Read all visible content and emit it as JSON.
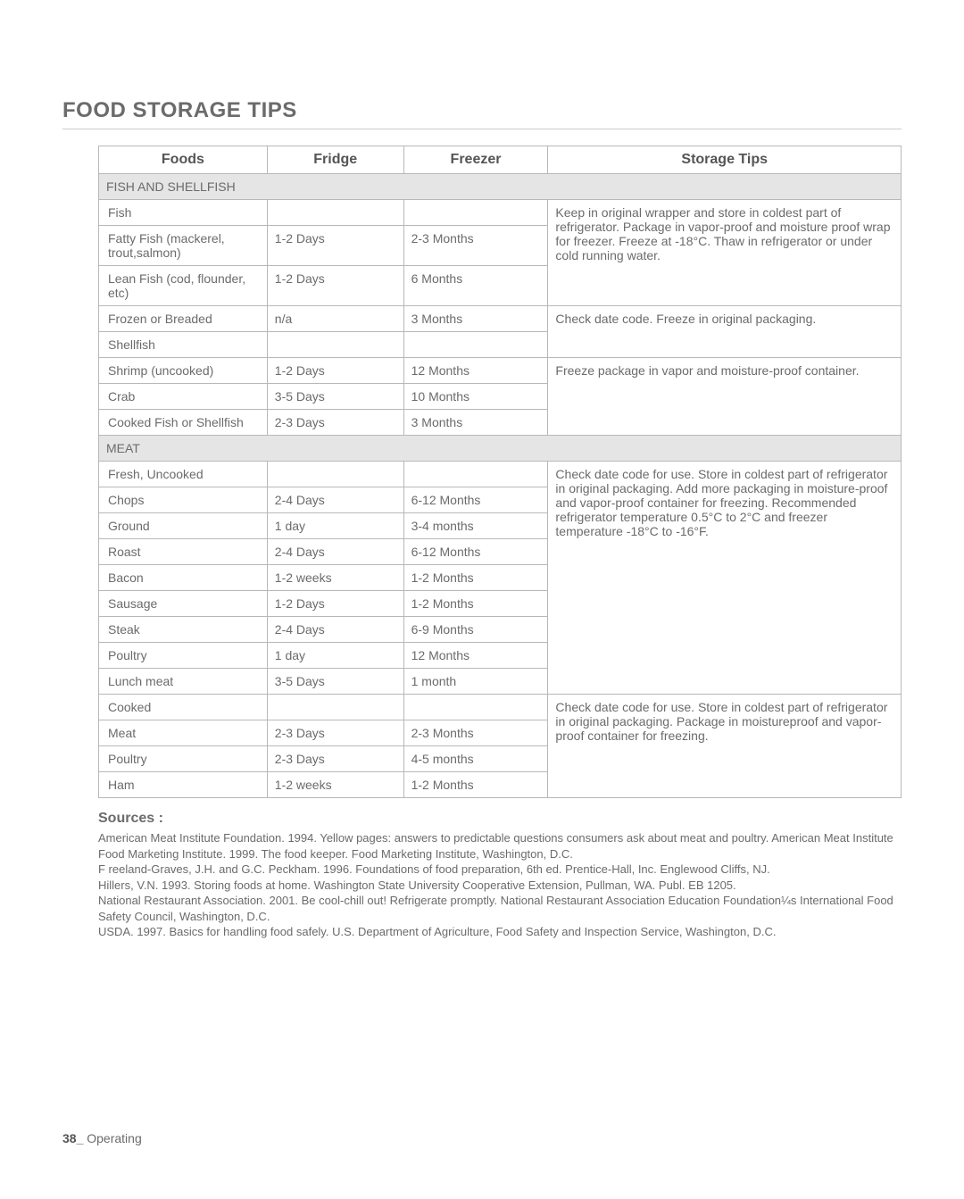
{
  "title": "FOOD STORAGE TIPS",
  "headers": {
    "foods": "Foods",
    "fridge": "Fridge",
    "freezer": "Freezer",
    "tips": "Storage Tips"
  },
  "sections": {
    "fish": "FISH AND SHELLFISH",
    "meat": "MEAT"
  },
  "rows": {
    "fish_sub": "Fish",
    "fatty": {
      "food": "Fatty Fish (mackerel, trout,salmon)",
      "fridge": "1-2 Days",
      "freezer": "2-3 Months"
    },
    "lean": {
      "food": "Lean Fish (cod, flounder, etc)",
      "fridge": "1-2 Days",
      "freezer": "6 Months"
    },
    "tip_fish": "Keep in original wrapper and store in coldest part of refrigerator. Package in vapor-proof and moisture proof wrap for freezer. Freeze at -18°C. Thaw in refrigerator or under cold running water.",
    "frozen": {
      "food": "Frozen or Breaded",
      "fridge": "n/a",
      "freezer": "3 Months"
    },
    "shellfish_sub": "Shellfish",
    "tip_frozen": "Check date code. Freeze in original packaging.",
    "shrimp": {
      "food": "Shrimp (uncooked)",
      "fridge": "1-2 Days",
      "freezer": "12 Months"
    },
    "crab": {
      "food": "Crab",
      "fridge": "3-5 Days",
      "freezer": "10 Months"
    },
    "cookedfish": {
      "food": "Cooked Fish or Shellfish",
      "fridge": "2-3 Days",
      "freezer": "3 Months"
    },
    "tip_shell": "Freeze package in vapor and moisture-proof container.",
    "fresh_sub": "Fresh, Uncooked",
    "chops": {
      "food": "Chops",
      "fridge": "2-4 Days",
      "freezer": "6-12 Months"
    },
    "ground": {
      "food": "Ground",
      "fridge": "1 day",
      "freezer": "3-4 months"
    },
    "roast": {
      "food": "Roast",
      "fridge": "2-4 Days",
      "freezer": "6-12 Months"
    },
    "bacon": {
      "food": "Bacon",
      "fridge": "1-2 weeks",
      "freezer": "1-2 Months"
    },
    "sausage": {
      "food": "Sausage",
      "fridge": "1-2 Days",
      "freezer": "1-2 Months"
    },
    "steak": {
      "food": "Steak",
      "fridge": "2-4 Days",
      "freezer": "6-9 Months"
    },
    "poultry": {
      "food": "Poultry",
      "fridge": "1 day",
      "freezer": "12 Months"
    },
    "lunch": {
      "food": "Lunch meat",
      "fridge": "3-5 Days",
      "freezer": "1 month"
    },
    "tip_meat": "Check date code for use. Store in coldest part of refrigerator in original packaging. Add more packaging in moisture-proof and vapor-proof container for freezing. Recommended refrigerator temperature 0.5°C to 2°C and freezer temperature -18°C to -16°F.",
    "cooked_sub": "Cooked",
    "meat2": {
      "food": "Meat",
      "fridge": "2-3 Days",
      "freezer": "2-3 Months"
    },
    "poultry2": {
      "food": "Poultry",
      "fridge": "2-3 Days",
      "freezer": "4-5 months"
    },
    "ham": {
      "food": "Ham",
      "fridge": "1-2 weeks",
      "freezer": "1-2 Months"
    },
    "tip_cooked": "Check date code for use. Store in coldest part of refrigerator in original packaging. Package in moistureproof and vapor-proof container for freezing."
  },
  "sources": {
    "heading": "Sources :",
    "lines": [
      "American Meat Institute Foundation. 1994. Yellow pages: answers to predictable questions consumers ask about meat and poultry. American Meat Institute",
      "Food Marketing Institute. 1999. The food keeper. Food Marketing Institute, Washington, D.C.",
      "F reeland-Graves, J.H. and G.C. Peckham. 1996. Foundations of food preparation, 6th ed. Prentice-Hall, Inc. Englewood Cliffs, NJ.",
      "Hillers, V.N. 1993. Storing foods at home. Washington State University Cooperative Extension, Pullman, WA. Publ. EB 1205.",
      "National Restaurant Association. 2001. Be cool-chill out! Refrigerate promptly. National Restaurant Association Education Foundation¼s International Food Safety Council, Washington, D.C.",
      "USDA. 1997. Basics for handling food safely. U.S. Department of Agriculture, Food Safety and Inspection Service, Washington, D.C."
    ]
  },
  "footer": {
    "page": "38_",
    "label": " Operating"
  },
  "colwidths": {
    "foods": "21%",
    "fridge": "17%",
    "freezer": "18%",
    "tips": "44%"
  }
}
